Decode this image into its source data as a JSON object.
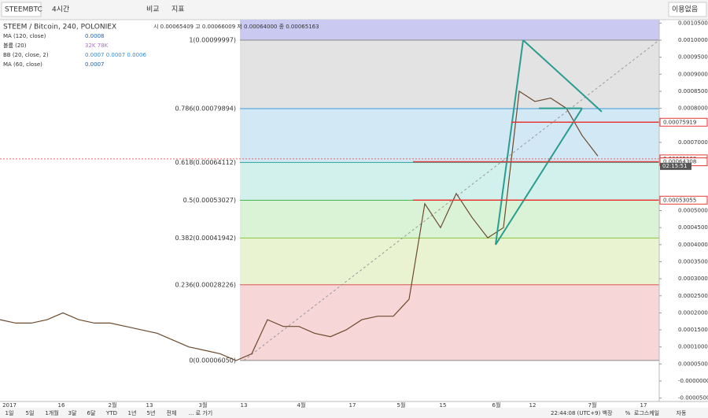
{
  "toolbar": {
    "symbol": "STEEMBTC",
    "interval": "4시간",
    "compare": "비교",
    "indicators": "지표",
    "status": "이용없음"
  },
  "legend": {
    "title": "STEEM / Bitcoin, 240, POLONIEX",
    "ohlc": "시 0.00065409 고 0.00066009 저 0.00064000 종 0.00065163",
    "studies": [
      {
        "name": "MA (120, close)",
        "value": "0.0008",
        "color": "#1e5fb4"
      },
      {
        "name": "볼륨 (20)",
        "value": "32K 78K",
        "color": "#b06ed0"
      },
      {
        "name": "BB (20, close, 2)",
        "value": "0.0007 0.0007 0.0006",
        "color": "#3a8ad0"
      },
      {
        "name": "MA (60, close)",
        "value": "0.0007",
        "color": "#1e5fb4"
      }
    ]
  },
  "fib_levels": [
    {
      "label": "1(0.00099997)",
      "value": 0.00099997,
      "color": "#888888",
      "zone": "#c9c9f2"
    },
    {
      "label": "0.786(0.00079894)",
      "value": 0.00079894,
      "color": "#3b9ad9",
      "zone": "#e3e3e3"
    },
    {
      "label": "0.618(0.00064112)",
      "value": 0.00064112,
      "color": "#29a39a",
      "zone": "#d3e8f5"
    },
    {
      "label": "0.5(0.00053027)",
      "value": 0.00053027,
      "color": "#3cb34a",
      "zone": "#d3f1ec"
    },
    {
      "label": "0.382(0.00041942)",
      "value": 0.00041942,
      "color": "#8bc53f",
      "zone": "#daf2d6"
    },
    {
      "label": "0.236(0.00028226)",
      "value": 0.00028226,
      "color": "#e05252",
      "zone": "#eaf3d1"
    },
    {
      "label": "0(0.00006050)",
      "value": 6.05e-05,
      "color": "#888888",
      "zone": "#f6d6d6"
    }
  ],
  "price_axis": {
    "ylim": [
      -6e-05,
      0.00106
    ],
    "ticks": [
      {
        "value": 0.00105,
        "label": "0.00105000"
      },
      {
        "value": 0.001,
        "label": "0.00100000"
      },
      {
        "value": 0.00095,
        "label": "0.00095000"
      },
      {
        "value": 0.0009,
        "label": "0.00090000"
      },
      {
        "value": 0.00085,
        "label": "0.00085000"
      },
      {
        "value": 0.0008,
        "label": "0.00080000"
      },
      {
        "value": 0.0007,
        "label": "0.00070000"
      },
      {
        "value": 0.0005,
        "label": "0.00050000"
      },
      {
        "value": 0.00045,
        "label": "0.00045000"
      },
      {
        "value": 0.0004,
        "label": "0.00040000"
      },
      {
        "value": 0.00035,
        "label": "0.00035000"
      },
      {
        "value": 0.0003,
        "label": "0.00030000"
      },
      {
        "value": 0.00025,
        "label": "0.00025000"
      },
      {
        "value": 0.0002,
        "label": "0.00020000"
      },
      {
        "value": 0.00015,
        "label": "0.00015000"
      },
      {
        "value": 0.0001,
        "label": "0.00010000"
      },
      {
        "value": 5e-05,
        "label": "0.00005000"
      },
      {
        "value": 0,
        "label": "-0.00000000"
      },
      {
        "value": -5e-05,
        "label": "-0.00005000"
      }
    ]
  },
  "price_labels": [
    {
      "value": 0.00075919,
      "label": "0.00075919",
      "color": "#e53935"
    },
    {
      "value": 0.00065163,
      "label": "0.00065163",
      "color": "#e53935"
    },
    {
      "value": 0.00064308,
      "label": "0.00064308",
      "color": "#e53935"
    },
    {
      "value": 0.00053055,
      "label": "0.00053055",
      "color": "#e53935"
    }
  ],
  "countdown": "02:15:51",
  "time_axis": [
    "2017",
    "16",
    "2월",
    "13",
    "3월",
    "13",
    "4월",
    "17",
    "5월",
    "15",
    "6월",
    "12",
    "7월",
    "17"
  ],
  "price_series": {
    "color": "#6b4a2e",
    "values": [
      0.00018,
      0.00017,
      0.00017,
      0.00018,
      0.0002,
      0.00018,
      0.00017,
      0.00017,
      0.00016,
      0.00015,
      0.00014,
      0.00012,
      0.0001,
      9e-05,
      8e-05,
      6e-05,
      8e-05,
      0.00018,
      0.00016,
      0.00016,
      0.00014,
      0.00013,
      0.00015,
      0.00018,
      0.00019,
      0.00019,
      0.00024,
      0.00052,
      0.00045,
      0.00055,
      0.00048,
      0.00042,
      0.00045,
      0.00085,
      0.00082,
      0.00083,
      0.0008,
      0.00072,
      0.00066
    ]
  },
  "bottom_bar": {
    "ranges": [
      "1일",
      "5일",
      "1개월",
      "3달",
      "6달",
      "YTD",
      "1년",
      "5년",
      "전체",
      "... 로 가기"
    ],
    "clock": "22:44:08 (UTC+9)",
    "options": [
      "백장",
      "%",
      "로그스케일",
      "자동"
    ]
  }
}
